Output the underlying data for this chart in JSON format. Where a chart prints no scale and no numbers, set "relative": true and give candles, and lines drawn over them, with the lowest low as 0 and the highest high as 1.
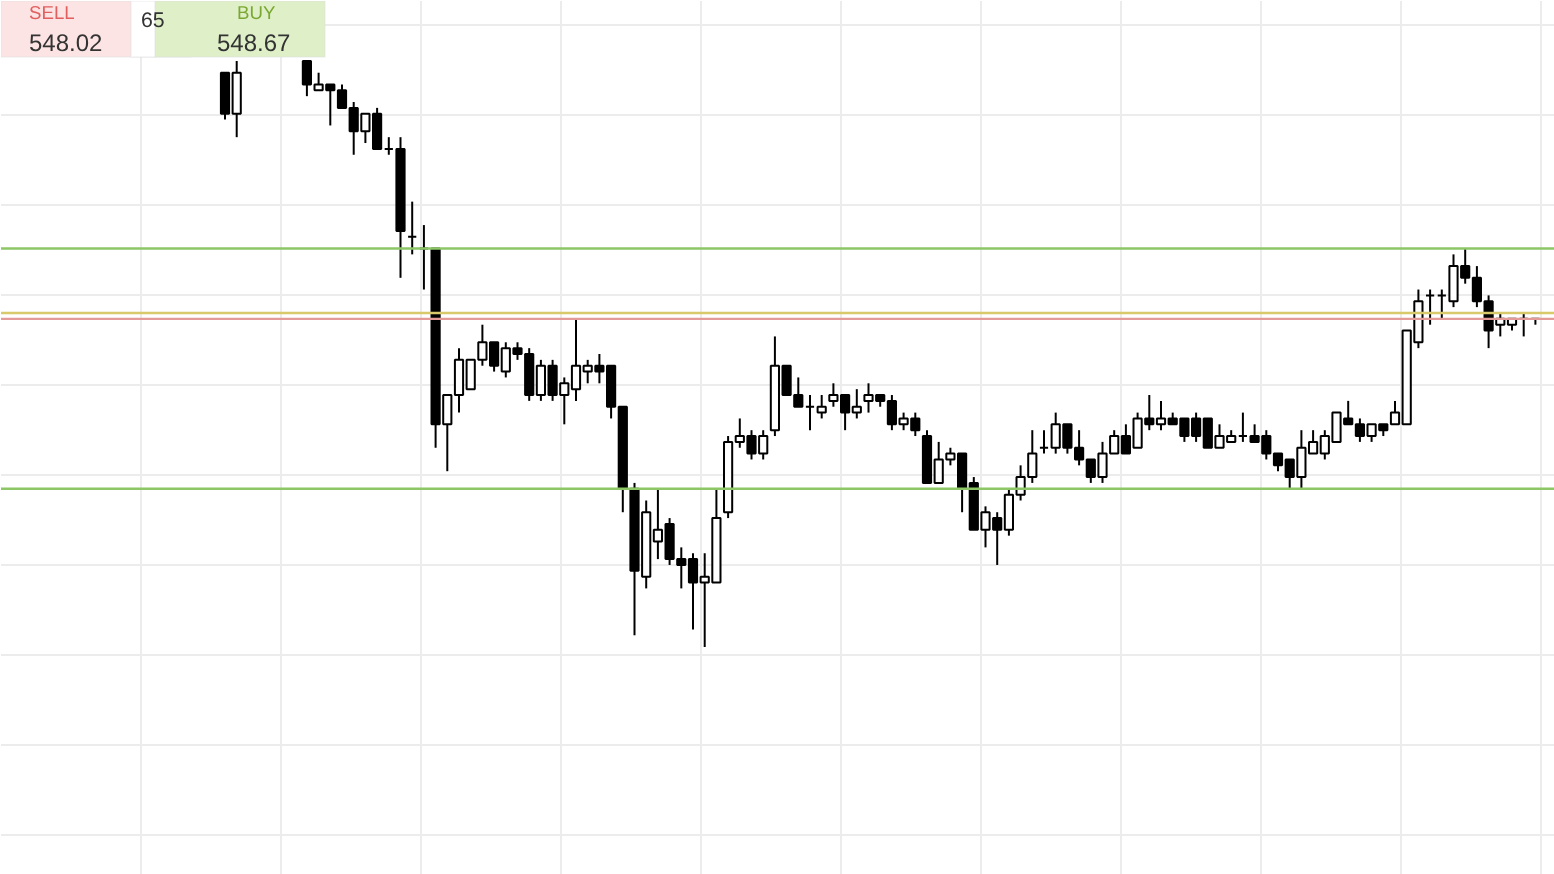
{
  "chart_data": {
    "type": "candlestick",
    "relative": true,
    "grid": true,
    "categories": [
      null,
      null,
      null,
      null,
      null,
      null,
      null,
      null,
      null,
      null,
      null,
      null,
      null,
      null,
      null,
      null,
      null,
      null,
      null,
      null,
      null,
      null,
      null,
      null,
      null,
      null,
      null,
      null,
      null,
      null,
      null,
      null,
      null,
      null,
      null,
      null,
      null,
      null,
      null,
      null,
      null,
      null,
      null,
      null,
      null,
      null,
      null,
      null,
      null,
      null,
      null,
      null,
      null,
      null,
      null,
      null,
      null,
      null,
      null,
      null,
      null,
      null,
      null,
      null,
      null,
      null,
      null,
      null,
      null,
      null,
      null,
      null,
      null,
      null,
      null,
      null,
      null,
      null,
      null,
      null,
      null,
      null,
      null,
      null,
      null,
      null,
      null,
      null,
      null,
      null,
      null,
      null,
      null,
      null,
      null,
      null,
      null,
      null,
      null,
      null,
      null,
      null,
      null,
      null,
      null,
      null,
      null,
      null,
      null,
      null,
      null,
      null,
      null
    ],
    "ohlc": [
      [
        0.98,
        0.98,
        0.9,
        0.91
      ],
      [
        0.91,
        1.0,
        0.87,
        0.98
      ],
      null,
      null,
      null,
      null,
      null,
      [
        1.0,
        1.0,
        0.94,
        0.96
      ],
      [
        0.95,
        0.98,
        0.95,
        0.96
      ],
      [
        0.96,
        0.96,
        0.89,
        0.95
      ],
      [
        0.95,
        0.96,
        0.92,
        0.92
      ],
      [
        0.92,
        0.93,
        0.84,
        0.88
      ],
      [
        0.88,
        0.91,
        0.86,
        0.91
      ],
      [
        0.91,
        0.92,
        0.85,
        0.85
      ],
      [
        0.85,
        0.87,
        0.84,
        0.85
      ],
      [
        0.85,
        0.87,
        0.63,
        0.71
      ],
      [
        0.7,
        0.76,
        0.67,
        0.7
      ],
      [
        0.68,
        0.72,
        0.61,
        0.68
      ],
      [
        0.68,
        0.68,
        0.34,
        0.38
      ],
      [
        0.38,
        0.43,
        0.3,
        0.43
      ],
      [
        0.43,
        0.51,
        0.4,
        0.49
      ],
      [
        0.44,
        0.49,
        0.44,
        0.49
      ],
      [
        0.49,
        0.55,
        0.48,
        0.52
      ],
      [
        0.52,
        0.52,
        0.47,
        0.48
      ],
      [
        0.47,
        0.52,
        0.46,
        0.51
      ],
      [
        0.51,
        0.52,
        0.49,
        0.5
      ],
      [
        0.5,
        0.51,
        0.42,
        0.43
      ],
      [
        0.43,
        0.49,
        0.42,
        0.48
      ],
      [
        0.48,
        0.49,
        0.42,
        0.43
      ],
      [
        0.43,
        0.46,
        0.38,
        0.45
      ],
      [
        0.44,
        0.56,
        0.42,
        0.48
      ],
      [
        0.47,
        0.49,
        0.45,
        0.48
      ],
      [
        0.48,
        0.5,
        0.45,
        0.47
      ],
      [
        0.48,
        0.48,
        0.39,
        0.41
      ],
      [
        0.41,
        0.41,
        0.23,
        0.27
      ],
      [
        0.27,
        0.28,
        0.02,
        0.13
      ],
      [
        0.12,
        0.25,
        0.1,
        0.23
      ],
      [
        0.18,
        0.27,
        0.15,
        0.2
      ],
      [
        0.21,
        0.22,
        0.14,
        0.15
      ],
      [
        0.15,
        0.17,
        0.1,
        0.14
      ],
      [
        0.15,
        0.16,
        0.03,
        0.11
      ],
      [
        0.11,
        0.16,
        0,
        0.12
      ],
      [
        0.11,
        0.27,
        0.11,
        0.22
      ],
      [
        0.23,
        0.36,
        0.22,
        0.35
      ],
      [
        0.35,
        0.39,
        0.34,
        0.36
      ],
      [
        0.36,
        0.37,
        0.32,
        0.33
      ],
      [
        0.33,
        0.37,
        0.32,
        0.36
      ],
      [
        0.37,
        0.53,
        0.36,
        0.48
      ],
      [
        0.48,
        0.48,
        0.43,
        0.43
      ],
      [
        0.43,
        0.46,
        0.41,
        0.41
      ],
      [
        0.41,
        0.43,
        0.37,
        0.41
      ],
      [
        0.4,
        0.43,
        0.39,
        0.41
      ],
      [
        0.42,
        0.45,
        0.41,
        0.43
      ],
      [
        0.43,
        0.43,
        0.37,
        0.4
      ],
      [
        0.4,
        0.44,
        0.39,
        0.41
      ],
      [
        0.42,
        0.45,
        0.4,
        0.43
      ],
      [
        0.43,
        0.43,
        0.41,
        0.42
      ],
      [
        0.42,
        0.43,
        0.37,
        0.38
      ],
      [
        0.38,
        0.4,
        0.37,
        0.39
      ],
      [
        0.39,
        0.4,
        0.36,
        0.37
      ],
      [
        0.36,
        0.37,
        0.28,
        0.28
      ],
      [
        0.28,
        0.35,
        0.28,
        0.32
      ],
      [
        0.32,
        0.34,
        0.31,
        0.33
      ],
      [
        0.33,
        0.33,
        0.23,
        0.27
      ],
      [
        0.28,
        0.29,
        0.2,
        0.2
      ],
      [
        0.2,
        0.24,
        0.17,
        0.23
      ],
      [
        0.22,
        0.23,
        0.14,
        0.2
      ],
      [
        0.2,
        0.27,
        0.19,
        0.26
      ],
      [
        0.26,
        0.31,
        0.25,
        0.29
      ],
      [
        0.29,
        0.37,
        0.28,
        0.33
      ],
      [
        0.34,
        0.37,
        0.33,
        0.34
      ],
      [
        0.34,
        0.4,
        0.33,
        0.38
      ],
      [
        0.38,
        0.38,
        0.33,
        0.34
      ],
      [
        0.34,
        0.37,
        0.31,
        0.32
      ],
      [
        0.32,
        0.32,
        0.28,
        0.29
      ],
      [
        0.29,
        0.35,
        0.28,
        0.33
      ],
      [
        0.33,
        0.37,
        0.33,
        0.36
      ],
      [
        0.36,
        0.38,
        0.33,
        0.33
      ],
      [
        0.34,
        0.4,
        0.34,
        0.39
      ],
      [
        0.39,
        0.43,
        0.37,
        0.38
      ],
      [
        0.38,
        0.42,
        0.37,
        0.39
      ],
      [
        0.39,
        0.4,
        0.38,
        0.38
      ],
      [
        0.39,
        0.39,
        0.35,
        0.36
      ],
      [
        0.39,
        0.4,
        0.35,
        0.36
      ],
      [
        0.39,
        0.39,
        0.34,
        0.34
      ],
      [
        0.34,
        0.38,
        0.34,
        0.36
      ],
      [
        0.35,
        0.37,
        0.35,
        0.36
      ],
      [
        0.36,
        0.4,
        0.35,
        0.36
      ],
      [
        0.36,
        0.38,
        0.35,
        0.35
      ],
      [
        0.36,
        0.37,
        0.32,
        0.33
      ],
      [
        0.33,
        0.33,
        0.3,
        0.31
      ],
      [
        0.32,
        0.32,
        0.27,
        0.29
      ],
      [
        0.29,
        0.37,
        0.27,
        0.34
      ],
      [
        0.33,
        0.37,
        0.33,
        0.35
      ],
      [
        0.33,
        0.37,
        0.32,
        0.36
      ],
      [
        0.35,
        0.4,
        0.35,
        0.4
      ],
      [
        0.39,
        0.42,
        0.38,
        0.38
      ],
      [
        0.38,
        0.39,
        0.35,
        0.36
      ],
      [
        0.36,
        0.38,
        0.35,
        0.38
      ],
      [
        0.38,
        0.38,
        0.36,
        0.37
      ],
      [
        0.38,
        0.42,
        0.38,
        0.4
      ],
      [
        0.38,
        0.54,
        0.38,
        0.54
      ],
      [
        0.52,
        0.61,
        0.51,
        0.59
      ],
      [
        0.6,
        0.61,
        0.55,
        0.6
      ],
      [
        0.6,
        0.61,
        0.56,
        0.6
      ],
      [
        0.59,
        0.67,
        0.58,
        0.65
      ],
      [
        0.65,
        0.68,
        0.62,
        0.63
      ],
      [
        0.63,
        0.65,
        0.58,
        0.59
      ],
      [
        0.59,
        0.6,
        0.51,
        0.54
      ],
      [
        0.55,
        0.57,
        0.53,
        0.56
      ],
      [
        0.55,
        0.56,
        0.54,
        0.56
      ],
      [
        0.56,
        0.57,
        0.53,
        0.56
      ],
      [
        0.56,
        0.56,
        0.55,
        0.56
      ]
    ],
    "ref_lines": [
      {
        "axis": "y",
        "value": 0.68,
        "color": "#8cc665"
      },
      {
        "axis": "y",
        "value": 0.57,
        "color": "#d8c96a"
      },
      {
        "axis": "y",
        "value": 0.56,
        "color": "#e59a9a"
      },
      {
        "axis": "y",
        "value": 0.27,
        "color": "#8cc665"
      }
    ],
    "annotations": [
      "SELL",
      "548.02",
      "65",
      "BUY",
      "548.67"
    ]
  }
}
